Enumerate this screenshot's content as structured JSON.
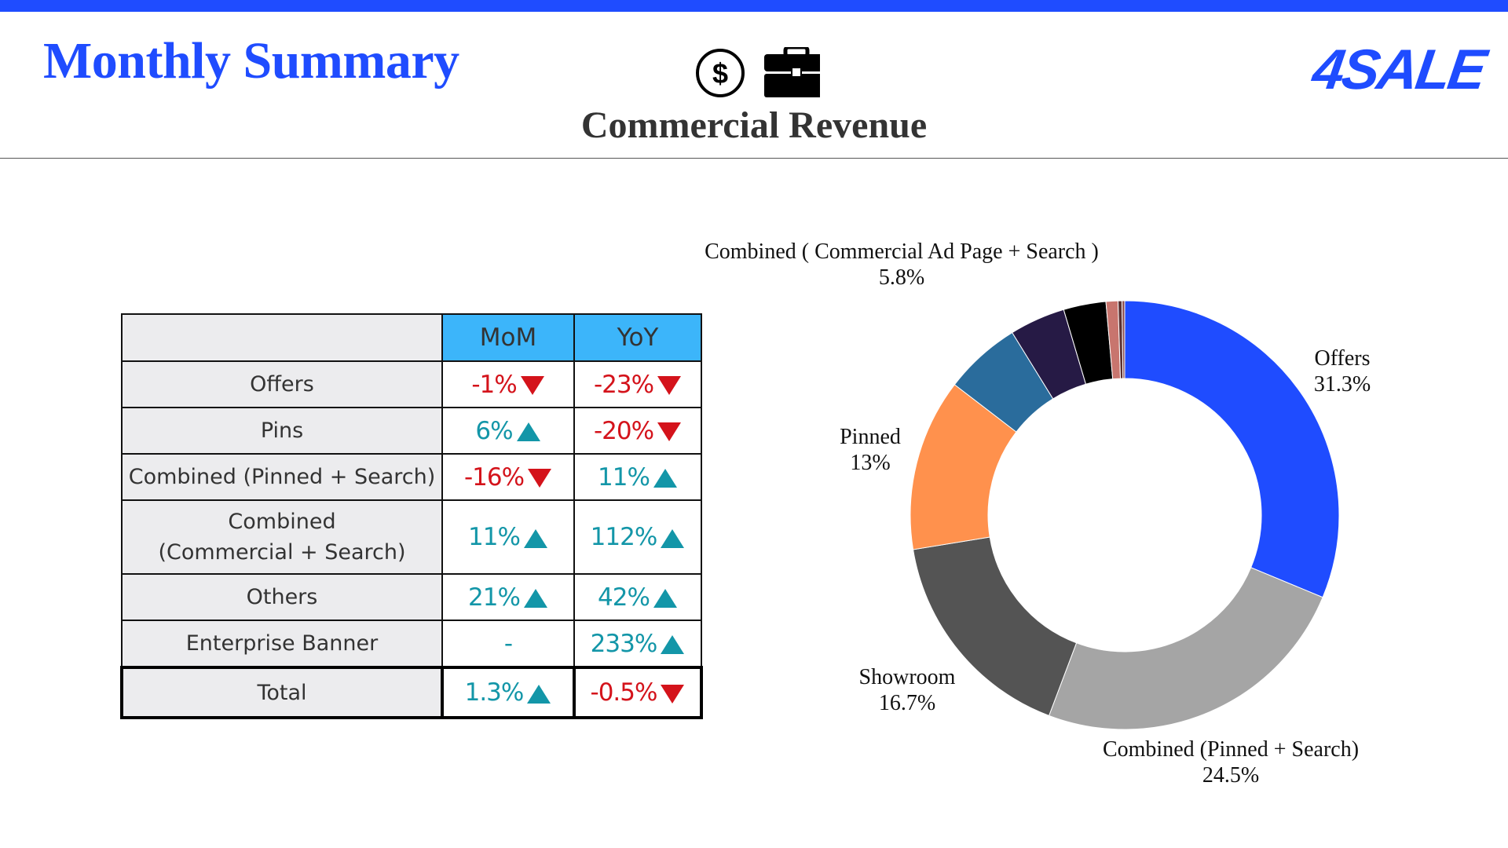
{
  "header": {
    "title": "Monthly Summary",
    "logo_text": "4SALE",
    "subtitle": "Commercial Revenue",
    "icons": [
      "dollar-circle-icon",
      "briefcase-icon"
    ],
    "accent_color": "#1f4cff"
  },
  "table": {
    "columns": [
      "MoM",
      "YoY"
    ],
    "rows": [
      {
        "label": "Offers",
        "mom": "-1%",
        "mom_dir": "down",
        "yoy": "-23%",
        "yoy_dir": "down"
      },
      {
        "label": "Pins",
        "mom": "6%",
        "mom_dir": "up",
        "yoy": "-20%",
        "yoy_dir": "down"
      },
      {
        "label": "Combined (Pinned + Search)",
        "mom": "-16%",
        "mom_dir": "down",
        "yoy": "11%",
        "yoy_dir": "up"
      },
      {
        "label_line1": "Combined",
        "label_line2": "(Commercial + Search)",
        "mom": "11%",
        "mom_dir": "up",
        "yoy": "112%",
        "yoy_dir": "up"
      },
      {
        "label": "Others",
        "mom": "21%",
        "mom_dir": "up",
        "yoy": "42%",
        "yoy_dir": "up"
      },
      {
        "label": "Enterprise Banner",
        "mom": "-",
        "mom_dir": "none",
        "yoy": "233%",
        "yoy_dir": "up"
      },
      {
        "label": "Total",
        "mom": "1.3%",
        "mom_dir": "up",
        "yoy": "-0.5%",
        "yoy_dir": "down"
      }
    ],
    "colors": {
      "up": "#1396a8",
      "down": "#d4131b",
      "header": "#3cb5fa",
      "label_bg": "#ececee"
    }
  },
  "chart_data": {
    "type": "pie",
    "donut": true,
    "start_angle_deg": 0,
    "direction": "clockwise",
    "slices": [
      {
        "name": "Offers",
        "value": 31.3,
        "color": "#1f4cff",
        "label": "Offers",
        "value_label": "31.3%"
      },
      {
        "name": "Combined (Pinned + Search)",
        "value": 24.5,
        "color": "#a5a5a5",
        "label": "Combined (Pinned + Search)",
        "value_label": "24.5%"
      },
      {
        "name": "Showroom",
        "value": 16.7,
        "color": "#545454",
        "label": "Showroom",
        "value_label": "16.7%"
      },
      {
        "name": "Pinned",
        "value": 13.0,
        "color": "#ff914d",
        "label": "Pinned",
        "value_label": "13%"
      },
      {
        "name": "Combined ( Commercial Ad Page + Search )",
        "value": 5.8,
        "color": "#2a6c9c",
        "label": "Combined ( Commercial Ad Page + Search )",
        "value_label": "5.8%"
      },
      {
        "name": "",
        "value": 4.2,
        "color": "#261a45",
        "label": "",
        "value_label": ""
      },
      {
        "name": "",
        "value": 3.2,
        "color": "#000000",
        "label": "",
        "value_label": ""
      },
      {
        "name": "",
        "value": 0.9,
        "color": "#c8756e",
        "label": "",
        "value_label": ""
      },
      {
        "name": "",
        "value": 0.3,
        "color": "#5a3030",
        "label": "",
        "value_label": ""
      },
      {
        "name": "",
        "value": 0.2,
        "color": "#8a4a4a",
        "label": "",
        "value_label": ""
      }
    ]
  }
}
